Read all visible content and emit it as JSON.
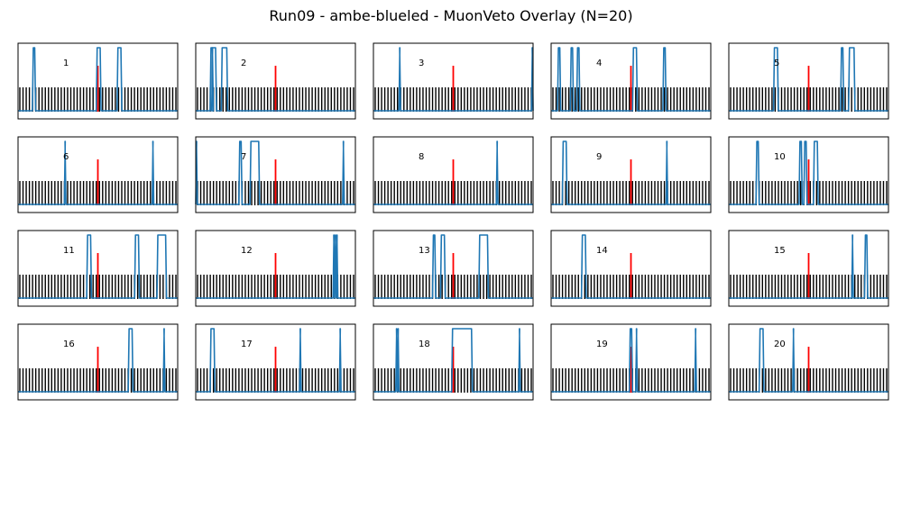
{
  "title": "Run09 - ambe-blueled - MuonVeto Overlay (N=20)",
  "colors": {
    "trace": "#1f77b4",
    "marker": "#ff0000",
    "ticks": "#000000",
    "frame": "#000000"
  },
  "chart_data": {
    "type": "line",
    "title": "Run09 - ambe-blueled - MuonVeto Overlay (N=20)",
    "grid": false,
    "legend": "none",
    "panels": [
      {
        "label": "1",
        "pulses": [
          [
            0.09,
            0.11
          ],
          [
            0.49,
            0.52
          ],
          [
            0.62,
            0.65
          ]
        ]
      },
      {
        "label": "2",
        "pulses": [
          [
            0.09,
            0.11
          ],
          [
            0.1,
            0.13
          ],
          [
            0.16,
            0.2
          ]
        ]
      },
      {
        "label": "3",
        "pulses": [
          [
            0.16,
            0.17
          ],
          [
            0.99,
            1.0
          ]
        ]
      },
      {
        "label": "4",
        "pulses": [
          [
            0.04,
            0.06
          ],
          [
            0.12,
            0.14
          ],
          [
            0.16,
            0.18
          ],
          [
            0.51,
            0.54
          ],
          [
            0.7,
            0.72
          ]
        ]
      },
      {
        "label": "5",
        "pulses": [
          [
            0.28,
            0.31
          ],
          [
            0.7,
            0.72
          ],
          [
            0.75,
            0.79
          ]
        ]
      },
      {
        "label": "6",
        "pulses": [
          [
            0.29,
            0.3
          ],
          [
            0.84,
            0.85
          ]
        ]
      },
      {
        "label": "7",
        "pulses": [
          [
            0.0,
            0.01
          ],
          [
            0.27,
            0.29
          ],
          [
            0.34,
            0.4
          ],
          [
            0.92,
            0.93
          ]
        ]
      },
      {
        "label": "8",
        "pulses": [
          [
            0.77,
            0.78
          ]
        ]
      },
      {
        "label": "9",
        "pulses": [
          [
            0.07,
            0.1
          ],
          [
            0.72,
            0.73
          ]
        ]
      },
      {
        "label": "10",
        "pulses": [
          [
            0.17,
            0.19
          ],
          [
            0.44,
            0.46
          ],
          [
            0.47,
            0.49
          ],
          [
            0.53,
            0.56
          ]
        ]
      },
      {
        "label": "11",
        "pulses": [
          [
            0.43,
            0.46
          ],
          [
            0.73,
            0.76
          ],
          [
            0.87,
            0.93
          ]
        ]
      },
      {
        "label": "12",
        "pulses": [
          [
            0.86,
            0.87
          ],
          [
            0.87,
            0.88
          ],
          [
            0.88,
            0.89
          ]
        ]
      },
      {
        "label": "13",
        "pulses": [
          [
            0.37,
            0.39
          ],
          [
            0.42,
            0.45
          ],
          [
            0.66,
            0.72
          ]
        ]
      },
      {
        "label": "14",
        "pulses": [
          [
            0.19,
            0.22
          ]
        ]
      },
      {
        "label": "15",
        "pulses": [
          [
            0.77,
            0.78
          ],
          [
            0.85,
            0.87
          ]
        ]
      },
      {
        "label": "16",
        "pulses": [
          [
            0.69,
            0.72
          ],
          [
            0.91,
            0.92
          ]
        ]
      },
      {
        "label": "17",
        "pulses": [
          [
            0.09,
            0.12
          ],
          [
            0.65,
            0.66
          ],
          [
            0.9,
            0.91
          ]
        ]
      },
      {
        "label": "18",
        "pulses": [
          [
            0.14,
            0.15
          ],
          [
            0.15,
            0.16
          ],
          [
            0.49,
            0.62
          ],
          [
            0.91,
            0.92
          ]
        ]
      },
      {
        "label": "19",
        "pulses": [
          [
            0.49,
            0.51
          ],
          [
            0.53,
            0.54
          ],
          [
            0.9,
            0.91
          ]
        ]
      },
      {
        "label": "20",
        "pulses": [
          [
            0.19,
            0.22
          ],
          [
            0.4,
            0.41
          ]
        ]
      }
    ]
  }
}
